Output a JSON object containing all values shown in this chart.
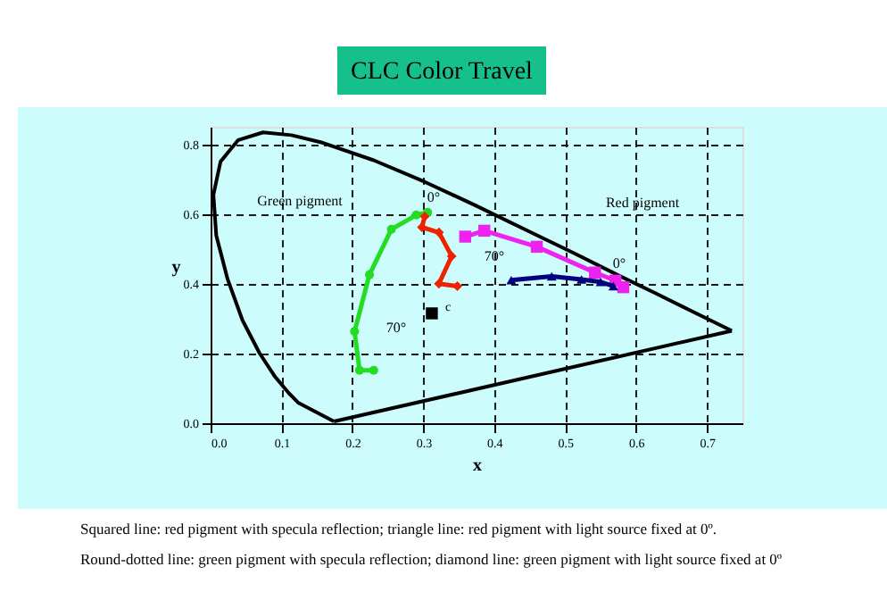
{
  "chart_data": {
    "type": "line",
    "title": "CLC Color Travel",
    "xlabel": "x",
    "ylabel": "y",
    "xlim": [
      0,
      0.75
    ],
    "ylim": [
      0,
      0.85
    ],
    "xticks": [
      {
        "value": 0,
        "label": "0.0"
      },
      0.1,
      0.2,
      0.3,
      0.4,
      0.5,
      0.6,
      0.7
    ],
    "yticks": [
      {
        "value": 0,
        "label": "0.0"
      },
      0.2,
      0.4,
      0.6,
      0.8
    ],
    "grid": true,
    "series": [
      {
        "color": "#000000",
        "marker": "none",
        "x": [
          0.174,
          0.124,
          0.11,
          0.091,
          0.069,
          0.045,
          0.024,
          0.008,
          0.004,
          0.014,
          0.039,
          0.074,
          0.114,
          0.155,
          0.23,
          0.302,
          0.373,
          0.444,
          0.513,
          0.575,
          0.627,
          0.692,
          0.735
        ],
        "values": [
          0.005,
          0.058,
          0.087,
          0.133,
          0.201,
          0.295,
          0.413,
          0.538,
          0.655,
          0.75,
          0.812,
          0.834,
          0.826,
          0.806,
          0.754,
          0.692,
          0.625,
          0.555,
          0.487,
          0.424,
          0.373,
          0.308,
          0.265
        ]
      },
      {
        "color": "#000000",
        "marker": "none",
        "x": [
          0.174,
          0.735
        ],
        "values": [
          0.005,
          0.265
        ]
      },
      {
        "color": "#22dd22",
        "marker": "circle",
        "x": [
          0.306,
          0.29,
          0.255,
          0.224,
          0.203,
          0.21,
          0.23
        ],
        "values": [
          0.605,
          0.597,
          0.556,
          0.426,
          0.263,
          0.152,
          0.152
        ]
      },
      {
        "color": "#ee2200",
        "marker": "diamond",
        "x": [
          0.302,
          0.298,
          0.322,
          0.34,
          0.322,
          0.348
        ],
        "values": [
          0.593,
          0.562,
          0.547,
          0.479,
          0.4,
          0.393
        ]
      },
      {
        "color": "#ee22ee",
        "marker": "square",
        "x": [
          0.359,
          0.386,
          0.46,
          0.542,
          0.571,
          0.582
        ],
        "values": [
          0.535,
          0.552,
          0.506,
          0.432,
          0.409,
          0.39
        ]
      },
      {
        "color": "#000080",
        "marker": "triangle",
        "x": [
          0.424,
          0.481,
          0.523,
          0.55,
          0.568
        ],
        "values": [
          0.41,
          0.421,
          0.412,
          0.405,
          0.393
        ]
      },
      {
        "type": "scatter",
        "color": "#000000",
        "marker": "square",
        "x": [
          0.312
        ],
        "values": [
          0.315
        ]
      }
    ],
    "annotations": [
      "Green pigment",
      "Red pigment",
      "0°",
      "70°",
      "0°",
      "70°",
      "c",
      "Squared line: red pigment with specula reflection; triangle line: red pigment with light source fixed at 0º.",
      "Round-dotted line: green pigment with specula reflection; diamond line: green pigment with light source fixed at 0º"
    ]
  }
}
